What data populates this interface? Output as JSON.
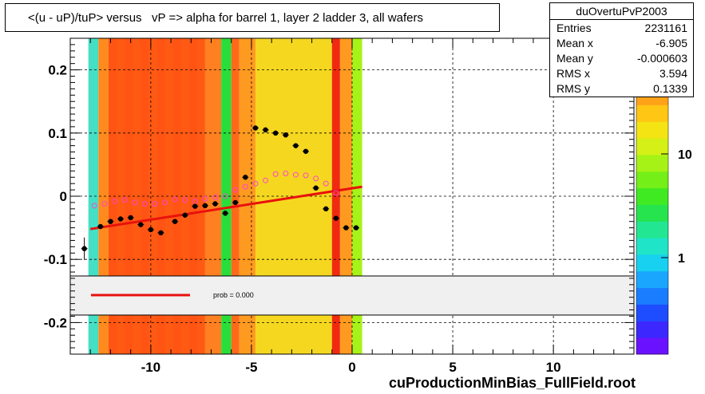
{
  "title": "<(u - uP)/tuP> versus   vP => alpha for barrel 1, layer 2 ladder 3, all wafers",
  "footer": "cuProductionMinBias_FullField.root",
  "stats": {
    "name": "duOvertuPvP2003",
    "rows": [
      {
        "label": "Entries",
        "value": "2231161"
      },
      {
        "label": "Mean x",
        "value": "-6.905"
      },
      {
        "label": "Mean y",
        "value": "-0.000603"
      },
      {
        "label": "RMS x",
        "value": "3.594"
      },
      {
        "label": "RMS y",
        "value": "0.1339"
      }
    ]
  },
  "fit_legend": {
    "text": "prob = 0.000"
  },
  "colors": {
    "fit_line": "#e8110c",
    "profile_points": "#000000",
    "secondary_points": "#ff44cc"
  },
  "chart_data": {
    "type": "heatmap",
    "title": "<(u - uP)/tuP> versus   vP => alpha for barrel 1, layer 2 ladder 3, all wafers",
    "xlim": [
      -14,
      14
    ],
    "ylim": [
      -0.25,
      0.25
    ],
    "x_ticks": [
      "-10",
      "-5",
      "0",
      "5",
      "10"
    ],
    "x_tick_values": [
      -10,
      -5,
      0,
      5,
      10
    ],
    "y_ticks": [
      "0.2",
      "0.1",
      "0",
      "-0.1",
      "-0.2"
    ],
    "y_tick_values": [
      0.2,
      0.1,
      0,
      -0.1,
      -0.2
    ],
    "grid": true,
    "color_scale": {
      "type": "log",
      "tick_labels": [
        "10",
        "1"
      ],
      "tick_values": [
        10,
        1
      ]
    },
    "heatmap_columns": [
      {
        "x0": -13.1,
        "x1": -12.6,
        "color": "#44dfc4"
      },
      {
        "x0": -12.6,
        "x1": -12.1,
        "color": "#ff8a1e"
      },
      {
        "x0": -12.1,
        "x1": -7.3,
        "color": "#ff5a14"
      },
      {
        "x0": -7.3,
        "x1": -6.5,
        "color": "#ff8020"
      },
      {
        "x0": -6.5,
        "x1": -6.0,
        "color": "#29dd3b"
      },
      {
        "x0": -6.0,
        "x1": -5.6,
        "color": "#ff6a18"
      },
      {
        "x0": -5.6,
        "x1": -4.8,
        "color": "#ff9a20"
      },
      {
        "x0": -4.8,
        "x1": -1.0,
        "color": "#f5d720"
      },
      {
        "x0": -1.0,
        "x1": -0.6,
        "color": "#f02a10"
      },
      {
        "x0": -0.6,
        "x1": 0.0,
        "color": "#ff9a20"
      },
      {
        "x0": 0.0,
        "x1": 0.5,
        "color": "#a7f218"
      }
    ],
    "series": [
      {
        "name": "",
        "x": [
          -13.3,
          -12.5,
          -12.0,
          -11.5,
          -11.0,
          -10.5,
          -10.0,
          -9.5,
          -8.8,
          -8.3,
          -7.8,
          -7.3,
          -6.8,
          -6.3,
          -5.8,
          -5.3,
          -4.8,
          -4.3,
          -3.8,
          -3.3,
          -2.8,
          -2.3,
          -1.8,
          -1.3,
          -0.8,
          -0.3,
          0.2
        ],
        "y": [
          -0.083,
          -0.048,
          -0.04,
          -0.036,
          -0.034,
          -0.045,
          -0.053,
          -0.058,
          -0.04,
          -0.03,
          -0.016,
          -0.015,
          -0.012,
          -0.027,
          -0.01,
          0.03,
          0.108,
          0.105,
          0.1,
          0.097,
          0.08,
          0.071,
          0.013,
          -0.02,
          -0.035,
          -0.05,
          -0.05
        ]
      },
      {
        "name": "",
        "x": [
          -12.8,
          -12.3,
          -11.8,
          -11.3,
          -10.8,
          -10.3,
          -9.8,
          -9.3,
          -8.8,
          -8.3,
          -7.8,
          -7.3,
          -6.8,
          -6.3,
          -5.8,
          -5.3,
          -4.8,
          -4.3,
          -3.8,
          -3.3,
          -2.8,
          -2.3,
          -1.8,
          -1.3,
          -0.8
        ],
        "y": [
          -0.015,
          -0.012,
          -0.008,
          -0.006,
          -0.01,
          -0.012,
          -0.012,
          -0.01,
          -0.005,
          -0.006,
          -0.008,
          -0.004,
          -0.002,
          0.0,
          0.01,
          0.015,
          0.02,
          0.025,
          0.035,
          0.036,
          0.034,
          0.033,
          0.028,
          0.02,
          0.005
        ]
      }
    ],
    "fit_line": {
      "x": [
        -13.0,
        0.5
      ],
      "y": [
        -0.052,
        0.015
      ]
    },
    "fit_legend_text": "prob = 0.000"
  }
}
